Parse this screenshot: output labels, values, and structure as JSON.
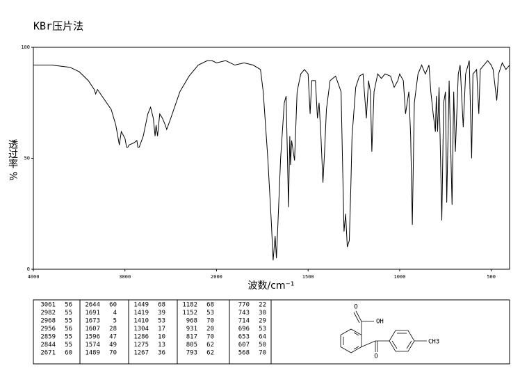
{
  "chart_data": {
    "type": "line",
    "title": "KBr压片法",
    "x_label": "波数/cm⁻¹",
    "y_label": "透过率 %",
    "xlim": [
      4000,
      400
    ],
    "x_scale_break": 2000,
    "xticks": [
      4000,
      3000,
      2000,
      1500,
      1000,
      500
    ],
    "ylim": [
      0,
      100
    ],
    "yticks": [
      0,
      50,
      100
    ],
    "color": "#000000",
    "x": [
      4000,
      3800,
      3600,
      3500,
      3400,
      3335,
      3320,
      3300,
      3150,
      3100,
      3061,
      3040,
      3000,
      2982,
      2968,
      2956,
      2900,
      2870,
      2859,
      2844,
      2800,
      2750,
      2720,
      2690,
      2671,
      2660,
      2644,
      2620,
      2590,
      2560,
      2544,
      2500,
      2400,
      2300,
      2200,
      2100,
      2050,
      2000,
      1950,
      1900,
      1850,
      1800,
      1760,
      1745,
      1720,
      1700,
      1691,
      1680,
      1673,
      1665,
      1650,
      1630,
      1620,
      1607,
      1600,
      1596,
      1590,
      1574,
      1560,
      1540,
      1520,
      1500,
      1489,
      1480,
      1460,
      1449,
      1440,
      1430,
      1419,
      1410,
      1400,
      1380,
      1350,
      1320,
      1304,
      1295,
      1286,
      1275,
      1267,
      1260,
      1240,
      1220,
      1200,
      1182,
      1170,
      1160,
      1152,
      1140,
      1120,
      1100,
      1080,
      1050,
      1030,
      1010,
      1000,
      980,
      968,
      950,
      940,
      931,
      920,
      900,
      880,
      860,
      840,
      830,
      817,
      805,
      800,
      793,
      785,
      770,
      760,
      750,
      743,
      730,
      714,
      705,
      696,
      680,
      670,
      653,
      640,
      620,
      607,
      600,
      580,
      568,
      560,
      540,
      520,
      500,
      490,
      470,
      460,
      440,
      420,
      400
    ],
    "values": [
      92,
      92,
      91,
      89,
      85,
      81,
      79,
      81,
      72,
      65,
      56,
      62,
      59,
      55,
      55,
      56,
      57,
      58,
      55,
      55,
      60,
      70,
      73,
      68,
      60,
      65,
      60,
      70,
      68,
      65,
      63,
      68,
      80,
      87,
      92,
      94,
      94,
      93,
      94,
      92,
      93,
      92,
      90,
      80,
      50,
      20,
      4,
      15,
      5,
      20,
      50,
      75,
      78,
      28,
      60,
      47,
      58,
      49,
      80,
      88,
      90,
      88,
      70,
      85,
      85,
      68,
      75,
      60,
      39,
      53,
      72,
      85,
      87,
      80,
      17,
      25,
      10,
      13,
      36,
      60,
      82,
      87,
      88,
      68,
      85,
      80,
      53,
      80,
      88,
      86,
      88,
      87,
      82,
      85,
      88,
      85,
      70,
      80,
      60,
      20,
      75,
      88,
      92,
      88,
      92,
      80,
      70,
      62,
      78,
      62,
      82,
      22,
      75,
      80,
      30,
      85,
      29,
      80,
      53,
      88,
      92,
      64,
      88,
      94,
      50,
      88,
      90,
      70,
      90,
      92,
      94,
      92,
      90,
      76,
      88,
      93,
      90,
      92
    ]
  },
  "peak_table": {
    "columns": [
      [
        [
          3061,
          56
        ],
        [
          2982,
          55
        ],
        [
          2968,
          55
        ],
        [
          2956,
          56
        ],
        [
          2859,
          55
        ],
        [
          2844,
          55
        ],
        [
          2671,
          60
        ]
      ],
      [
        [
          2644,
          60
        ],
        [
          1691,
          4
        ],
        [
          1673,
          5
        ],
        [
          1607,
          28
        ],
        [
          1596,
          47
        ],
        [
          1574,
          49
        ],
        [
          1489,
          70
        ]
      ],
      [
        [
          1449,
          68
        ],
        [
          1419,
          39
        ],
        [
          1410,
          53
        ],
        [
          1304,
          17
        ],
        [
          1286,
          10
        ],
        [
          1275,
          13
        ],
        [
          1267,
          36
        ]
      ],
      [
        [
          1182,
          68
        ],
        [
          1152,
          53
        ],
        [
          968,
          70
        ],
        [
          931,
          20
        ],
        [
          817,
          70
        ],
        [
          805,
          62
        ],
        [
          793,
          62
        ]
      ],
      [
        [
          770,
          22
        ],
        [
          743,
          30
        ],
        [
          714,
          29
        ],
        [
          696,
          53
        ],
        [
          653,
          64
        ],
        [
          607,
          50
        ],
        [
          568,
          70
        ]
      ]
    ]
  },
  "structure": {
    "labels": [
      "O",
      "OH",
      "O",
      "CH3"
    ]
  }
}
